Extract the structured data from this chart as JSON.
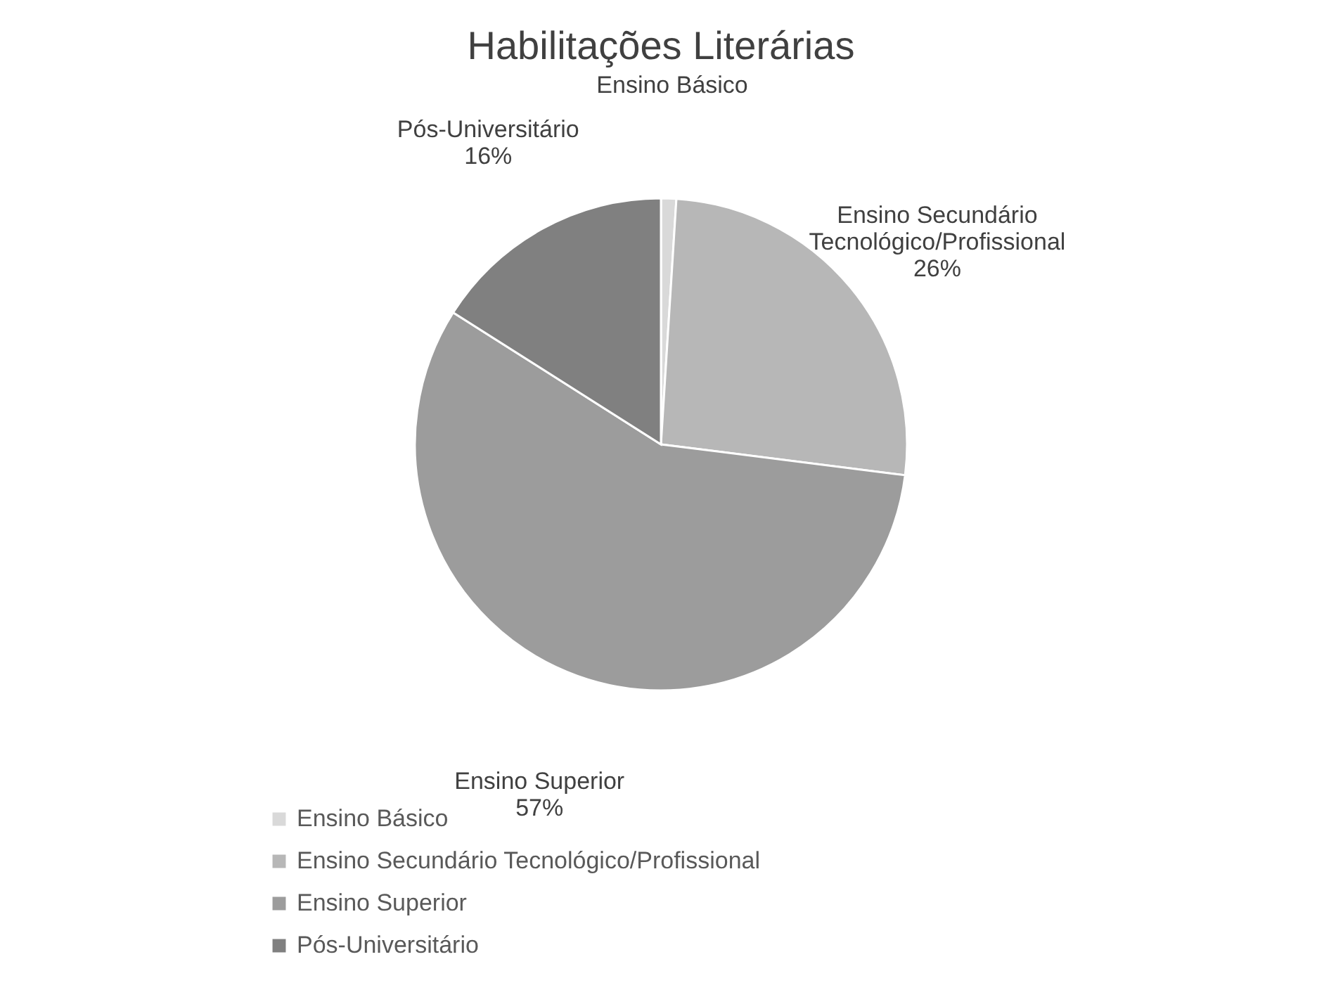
{
  "chart_data": {
    "type": "pie",
    "title": "Habilitações Literárias",
    "categories": [
      "Ensino Básico",
      "Ensino Secundário Tecnológico/Profissional",
      "Ensino Superior",
      "Pós-Universitário"
    ],
    "values": [
      1,
      26,
      57,
      16
    ],
    "value_labels": [
      null,
      "26%",
      "57%",
      "16%"
    ],
    "colors": [
      "#d9d9d9",
      "#b7b7b7",
      "#9c9c9c",
      "#808080"
    ],
    "legend": "bottom"
  }
}
